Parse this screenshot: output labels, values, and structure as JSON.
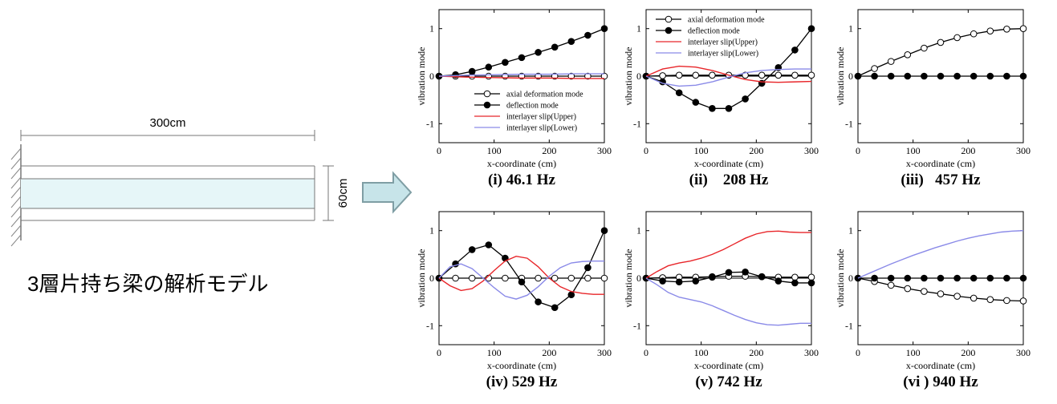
{
  "model": {
    "title": "3層片持ち梁の解析モデル",
    "length_label": "300cm",
    "height_label": "60cm",
    "layer_fill": "#e6f6f8",
    "arrow_fill": "#c7e4e9",
    "arrow_stroke": "#7f9ea4"
  },
  "legend_entries": [
    {
      "label": "axial deformation mode",
      "marker": "open-circle"
    },
    {
      "label": "deflection mode",
      "marker": "filled-circle"
    },
    {
      "label": "interlayer slip(Upper)",
      "color": "#e8262a"
    },
    {
      "label": "interlayer slip(Lower)",
      "color": "#8a8ae8"
    }
  ],
  "chart_data": [
    {
      "type": "line",
      "caption": "(i) 46.1 Hz",
      "xlabel": "x-coordinate (cm)",
      "ylabel": "vibration mode",
      "xlim": [
        0,
        300
      ],
      "ylim": [
        -1.4,
        1.4
      ],
      "xticks": [
        0,
        100,
        200,
        300
      ],
      "yticks": [
        -1,
        0,
        1
      ],
      "legend": "lower-center",
      "series": [
        {
          "name": "axial deformation mode",
          "marker": "open",
          "x": [
            0,
            30,
            60,
            90,
            120,
            150,
            180,
            210,
            240,
            270,
            300
          ],
          "y": [
            0,
            0,
            0,
            0,
            0,
            0,
            0,
            0,
            0,
            0,
            0
          ]
        },
        {
          "name": "deflection mode",
          "marker": "filled",
          "x": [
            0,
            30,
            60,
            90,
            120,
            150,
            180,
            210,
            240,
            270,
            300
          ],
          "y": [
            0,
            0.03,
            0.1,
            0.19,
            0.29,
            0.39,
            0.5,
            0.61,
            0.73,
            0.86,
            1.0
          ]
        },
        {
          "name": "interlayer slip(Upper)",
          "color": "#e8262a",
          "x": [
            0,
            50,
            100,
            150,
            200,
            250,
            300
          ],
          "y": [
            0,
            -0.02,
            -0.03,
            -0.04,
            -0.04,
            -0.05,
            -0.05
          ]
        },
        {
          "name": "interlayer slip(Lower)",
          "color": "#8a8ae8",
          "x": [
            0,
            50,
            100,
            150,
            200,
            250,
            300
          ],
          "y": [
            0,
            0.02,
            0.03,
            0.04,
            0.04,
            0.05,
            0.05
          ]
        }
      ]
    },
    {
      "type": "line",
      "caption": "(ii)    208 Hz",
      "xlabel": "x-coordinate (cm)",
      "ylabel": "vibration mode",
      "xlim": [
        0,
        300
      ],
      "ylim": [
        -1.4,
        1.4
      ],
      "xticks": [
        0,
        100,
        200,
        300
      ],
      "yticks": [
        -1,
        0,
        1
      ],
      "legend": "top",
      "series": [
        {
          "name": "axial deformation mode",
          "marker": "open",
          "x": [
            0,
            30,
            60,
            90,
            120,
            150,
            180,
            210,
            240,
            270,
            300
          ],
          "y": [
            0,
            0.01,
            0.02,
            0.02,
            0.02,
            0.02,
            0.02,
            0.02,
            0.02,
            0.02,
            0.02
          ]
        },
        {
          "name": "deflection mode",
          "marker": "filled",
          "x": [
            0,
            30,
            60,
            90,
            120,
            150,
            180,
            210,
            240,
            270,
            300
          ],
          "y": [
            0,
            -0.12,
            -0.35,
            -0.55,
            -0.68,
            -0.68,
            -0.48,
            -0.15,
            0.18,
            0.55,
            1.0
          ]
        },
        {
          "name": "interlayer slip(Upper)",
          "color": "#e8262a",
          "x": [
            0,
            30,
            60,
            90,
            120,
            150,
            180,
            210,
            240,
            270,
            300
          ],
          "y": [
            0,
            0.15,
            0.21,
            0.19,
            0.12,
            0.02,
            -0.07,
            -0.12,
            -0.13,
            -0.12,
            -0.11
          ]
        },
        {
          "name": "interlayer slip(Lower)",
          "color": "#8a8ae8",
          "x": [
            0,
            30,
            60,
            90,
            120,
            150,
            180,
            210,
            240,
            270,
            300
          ],
          "y": [
            0,
            -0.15,
            -0.21,
            -0.19,
            -0.12,
            -0.02,
            0.07,
            0.12,
            0.14,
            0.15,
            0.15
          ]
        }
      ]
    },
    {
      "type": "line",
      "caption": "(iii)   457 Hz",
      "xlabel": "x-coordinate (cm)",
      "ylabel": "vibration mode",
      "xlim": [
        0,
        300
      ],
      "ylim": [
        -1.4,
        1.4
      ],
      "xticks": [
        0,
        100,
        200,
        300
      ],
      "yticks": [
        -1,
        0,
        1
      ],
      "series": [
        {
          "name": "axial deformation mode",
          "marker": "open",
          "x": [
            0,
            30,
            60,
            90,
            120,
            150,
            180,
            210,
            240,
            270,
            300
          ],
          "y": [
            0,
            0.16,
            0.31,
            0.45,
            0.59,
            0.71,
            0.81,
            0.89,
            0.95,
            0.99,
            1.0
          ]
        },
        {
          "name": "deflection mode",
          "marker": "filled",
          "x": [
            0,
            30,
            60,
            90,
            120,
            150,
            180,
            210,
            240,
            270,
            300
          ],
          "y": [
            0,
            0,
            0,
            0,
            0,
            0,
            0,
            0,
            0,
            0,
            0
          ]
        }
      ]
    },
    {
      "type": "line",
      "caption": "(iv) 529 Hz",
      "xlabel": "x-coordinate (cm)",
      "ylabel": "vibration mode",
      "xlim": [
        0,
        300
      ],
      "ylim": [
        -1.4,
        1.4
      ],
      "xticks": [
        0,
        100,
        200,
        300
      ],
      "yticks": [
        -1,
        0,
        1
      ],
      "series": [
        {
          "name": "axial deformation mode",
          "marker": "open",
          "x": [
            0,
            30,
            60,
            90,
            120,
            150,
            180,
            210,
            240,
            270,
            300
          ],
          "y": [
            0,
            0,
            0,
            0,
            0,
            0,
            0,
            0,
            0,
            0,
            0
          ]
        },
        {
          "name": "deflection mode",
          "marker": "filled",
          "x": [
            0,
            30,
            60,
            90,
            120,
            150,
            180,
            210,
            240,
            270,
            300
          ],
          "y": [
            0,
            0.3,
            0.6,
            0.7,
            0.42,
            -0.08,
            -0.5,
            -0.62,
            -0.35,
            0.22,
            1.0
          ]
        },
        {
          "name": "interlayer slip(Upper)",
          "color": "#e8262a",
          "x": [
            0,
            20,
            40,
            60,
            80,
            100,
            120,
            140,
            160,
            180,
            200,
            220,
            240,
            260,
            280,
            300
          ],
          "y": [
            0,
            -0.16,
            -0.26,
            -0.22,
            -0.06,
            0.16,
            0.36,
            0.46,
            0.42,
            0.24,
            0.0,
            -0.18,
            -0.28,
            -0.32,
            -0.34,
            -0.34
          ]
        },
        {
          "name": "interlayer slip(Lower)",
          "color": "#8a8ae8",
          "x": [
            0,
            20,
            40,
            60,
            80,
            100,
            120,
            140,
            160,
            180,
            200,
            220,
            240,
            260,
            280,
            300
          ],
          "y": [
            0,
            0.24,
            0.3,
            0.2,
            0.0,
            -0.2,
            -0.38,
            -0.44,
            -0.36,
            -0.18,
            0.04,
            0.22,
            0.32,
            0.35,
            0.36,
            0.36
          ]
        }
      ]
    },
    {
      "type": "line",
      "caption": "(v) 742 Hz",
      "xlabel": "x-coordinate (cm)",
      "ylabel": "vibration mode",
      "xlim": [
        0,
        300
      ],
      "ylim": [
        -1.4,
        1.4
      ],
      "xticks": [
        0,
        100,
        200,
        300
      ],
      "yticks": [
        -1,
        0,
        1
      ],
      "series": [
        {
          "name": "axial deformation mode",
          "marker": "open",
          "x": [
            0,
            30,
            60,
            90,
            120,
            150,
            180,
            210,
            240,
            270,
            300
          ],
          "y": [
            0,
            0.01,
            0.02,
            0.02,
            0.03,
            0.04,
            0.04,
            0.03,
            0.02,
            0.02,
            0.02
          ]
        },
        {
          "name": "deflection mode",
          "marker": "filled",
          "x": [
            0,
            30,
            60,
            90,
            120,
            150,
            180,
            210,
            240,
            270,
            300
          ],
          "y": [
            0,
            -0.06,
            -0.08,
            -0.06,
            0.02,
            0.12,
            0.13,
            0.03,
            -0.06,
            -0.1,
            -0.1
          ]
        },
        {
          "name": "interlayer slip(Upper)",
          "color": "#e8262a",
          "x": [
            0,
            20,
            40,
            60,
            80,
            100,
            120,
            140,
            160,
            180,
            200,
            220,
            240,
            260,
            280,
            300
          ],
          "y": [
            0,
            0.14,
            0.26,
            0.32,
            0.36,
            0.42,
            0.5,
            0.6,
            0.72,
            0.84,
            0.93,
            0.98,
            0.99,
            0.97,
            0.96,
            0.96
          ]
        },
        {
          "name": "interlayer slip(Lower)",
          "color": "#8a8ae8",
          "x": [
            0,
            20,
            40,
            60,
            80,
            100,
            120,
            140,
            160,
            180,
            200,
            220,
            240,
            260,
            280,
            300
          ],
          "y": [
            0,
            -0.14,
            -0.3,
            -0.4,
            -0.45,
            -0.5,
            -0.58,
            -0.68,
            -0.78,
            -0.87,
            -0.94,
            -0.98,
            -0.99,
            -0.97,
            -0.95,
            -0.95
          ]
        }
      ]
    },
    {
      "type": "line",
      "caption": "(vi ) 940 Hz",
      "xlabel": "x-coordinate (cm)",
      "ylabel": "vibration mode",
      "xlim": [
        0,
        300
      ],
      "ylim": [
        -1.4,
        1.4
      ],
      "xticks": [
        0,
        100,
        200,
        300
      ],
      "yticks": [
        -1,
        0,
        1
      ],
      "series": [
        {
          "name": "axial deformation mode",
          "marker": "open",
          "x": [
            0,
            30,
            60,
            90,
            120,
            150,
            180,
            210,
            240,
            270,
            300
          ],
          "y": [
            0,
            -0.07,
            -0.15,
            -0.22,
            -0.28,
            -0.33,
            -0.38,
            -0.42,
            -0.45,
            -0.47,
            -0.48
          ]
        },
        {
          "name": "deflection mode",
          "marker": "filled",
          "x": [
            0,
            30,
            60,
            90,
            120,
            150,
            180,
            210,
            240,
            270,
            300
          ],
          "y": [
            0,
            0,
            0,
            0,
            0,
            0,
            0,
            0,
            0,
            0,
            0
          ]
        },
        {
          "name": "interlayer slip(Lower)",
          "color": "#8a8ae8",
          "x": [
            0,
            20,
            40,
            60,
            80,
            100,
            120,
            140,
            160,
            180,
            200,
            220,
            240,
            260,
            280,
            300
          ],
          "y": [
            0,
            0.1,
            0.2,
            0.3,
            0.39,
            0.48,
            0.56,
            0.64,
            0.71,
            0.78,
            0.84,
            0.89,
            0.93,
            0.97,
            0.99,
            1.0
          ]
        }
      ]
    }
  ]
}
